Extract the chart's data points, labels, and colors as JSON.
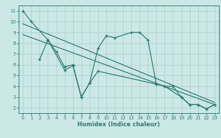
{
  "line1_x": [
    0,
    1,
    3,
    4,
    5,
    6,
    7,
    8,
    9,
    10,
    11,
    13,
    14,
    15,
    16,
    17,
    18,
    19,
    20,
    21,
    22,
    23
  ],
  "line1_y": [
    11.0,
    10.0,
    8.3,
    7.2,
    5.8,
    6.0,
    3.0,
    4.3,
    7.5,
    8.7,
    8.5,
    9.0,
    9.0,
    8.3,
    4.2,
    4.0,
    4.0,
    3.0,
    2.3,
    2.3,
    1.9,
    2.3
  ],
  "line2_x": [
    2,
    3,
    5,
    6,
    7,
    8,
    9,
    16,
    17,
    19,
    20,
    21,
    22,
    23
  ],
  "line2_y": [
    6.5,
    8.3,
    5.5,
    5.9,
    3.0,
    4.3,
    5.4,
    4.2,
    4.0,
    3.0,
    2.3,
    2.3,
    1.9,
    2.3
  ],
  "trend1_x": [
    0,
    23
  ],
  "trend1_y": [
    9.8,
    2.5
  ],
  "trend2_x": [
    0,
    23
  ],
  "trend2_y": [
    8.8,
    2.3
  ],
  "color": "#2e7d6e",
  "bg_color": "#cce8e6",
  "grid_color": "#aed0ce",
  "xlabel": "Humidex (Indice chaleur)",
  "xlim": [
    -0.5,
    23.5
  ],
  "ylim": [
    1.5,
    11.5
  ],
  "yticks": [
    2,
    3,
    4,
    5,
    6,
    7,
    8,
    9,
    10,
    11
  ],
  "xticks": [
    0,
    1,
    2,
    3,
    4,
    5,
    6,
    7,
    8,
    9,
    10,
    11,
    12,
    13,
    14,
    15,
    16,
    17,
    18,
    19,
    20,
    21,
    22,
    23
  ]
}
